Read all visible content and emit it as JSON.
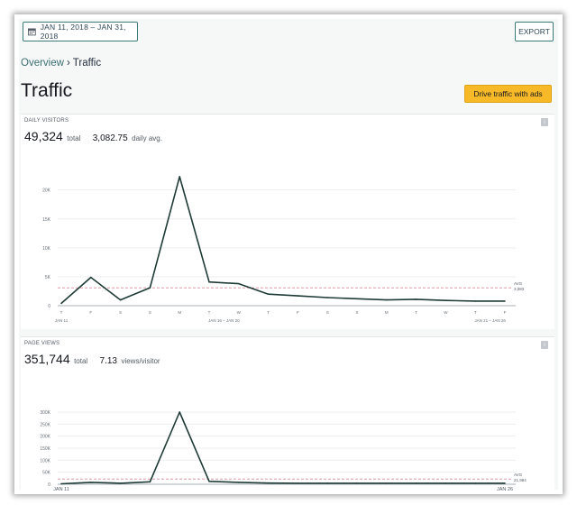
{
  "toolbar": {
    "date_range": "JAN 11, 2018 – JAN 31, 2018",
    "export_label": "EXPORT"
  },
  "breadcrumb": {
    "parent": "Overview",
    "separator": "›",
    "current": "Traffic"
  },
  "page": {
    "title": "Traffic",
    "cta_label": "Drive traffic with ads"
  },
  "daily_visitors": {
    "label": "DAILY VISITORS",
    "total": "49,324",
    "total_suffix": "total",
    "avg": "3,082.75",
    "avg_suffix": "daily avg."
  },
  "page_views": {
    "label": "PAGE VIEWS",
    "total": "351,744",
    "total_suffix": "total",
    "ratio": "7.13",
    "ratio_suffix": "views/visitor"
  },
  "colors": {
    "line": "#1f3b36",
    "avg_line": "#d98a9a",
    "accent": "#f7b928",
    "teal": "#3b7a77"
  },
  "chart_data": [
    {
      "type": "line",
      "title": "DAILY VISITORS",
      "day_labels": [
        "T",
        "F",
        "S",
        "S",
        "M",
        "T",
        "W",
        "T",
        "F",
        "S",
        "S",
        "M",
        "T",
        "W",
        "T",
        "F"
      ],
      "range_labels": [
        "JAN 11",
        "JAN 16 – JAN 20",
        "JAN 21 – JAN 26"
      ],
      "yticks": [
        "0",
        "5K",
        "10K",
        "15K",
        "20K"
      ],
      "ylim": [
        0,
        24000
      ],
      "values": [
        400,
        4900,
        1000,
        3100,
        22300,
        4100,
        3800,
        2000,
        1700,
        1400,
        1200,
        1000,
        1100,
        900,
        800,
        800
      ],
      "avg_value": 3083,
      "avg_label": [
        "AVG",
        "3,083"
      ],
      "grid": true
    },
    {
      "type": "line",
      "title": "PAGE VIEWS",
      "x_labels": [
        "JAN 11",
        "JAN 26"
      ],
      "yticks": [
        "0",
        "50K",
        "100K",
        "150K",
        "200K",
        "250K",
        "300K"
      ],
      "ylim": [
        0,
        300000
      ],
      "values": [
        2000,
        8000,
        4000,
        10000,
        300000,
        12000,
        8000,
        5000,
        4000,
        4000,
        4000,
        4000,
        4000,
        4000,
        4000,
        4000
      ],
      "avg_value": 21984,
      "avg_label": [
        "AVG",
        "21,984"
      ],
      "grid": true
    }
  ]
}
